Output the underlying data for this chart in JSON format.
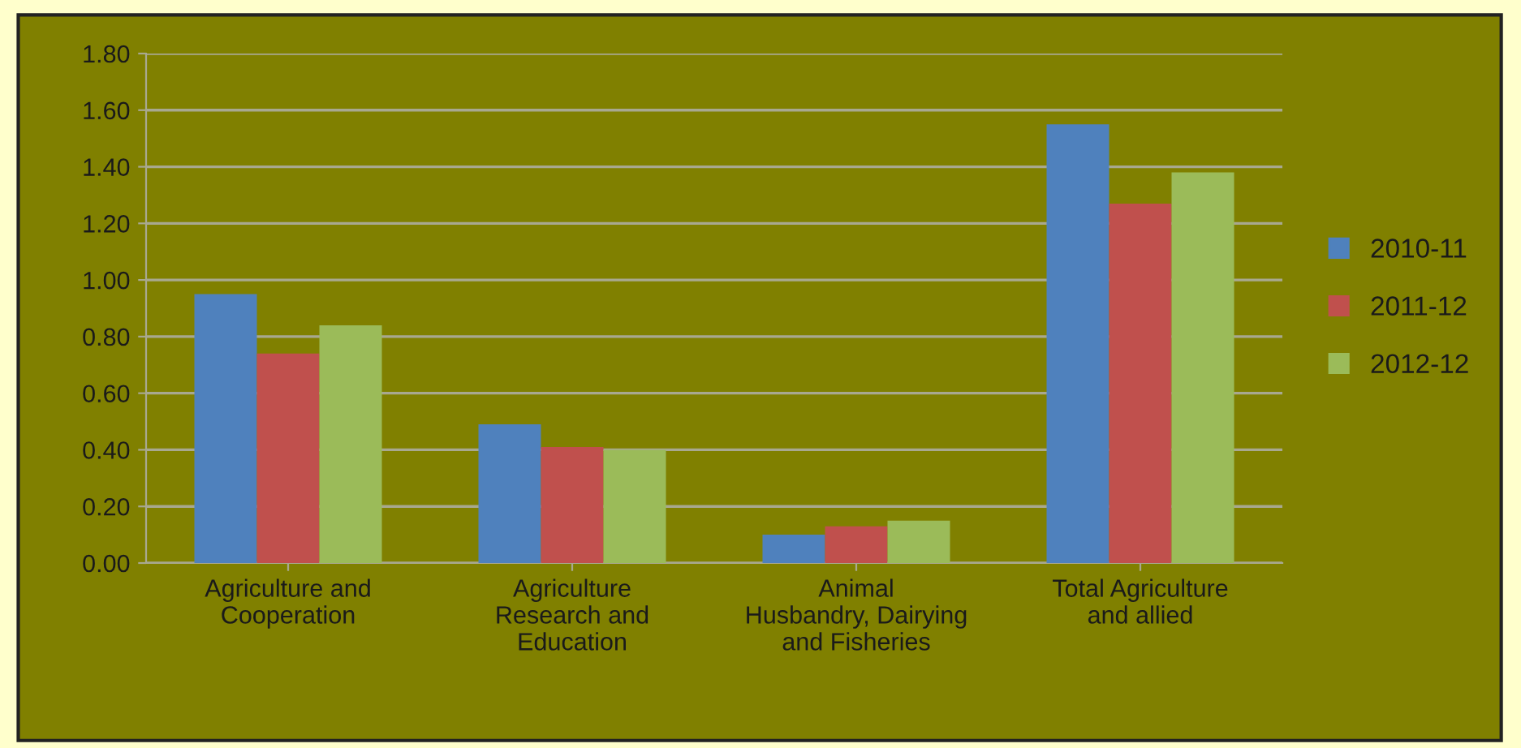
{
  "chart_data": {
    "type": "bar",
    "categories": [
      "Agriculture and\nCooperation",
      "Agriculture\nResearch and\nEducation",
      "Animal\nHusbandry, Dairying\nand Fisheries",
      "Total Agriculture\nand allied"
    ],
    "series": [
      {
        "name": "2010-11",
        "color": "#4f81bd",
        "values": [
          0.95,
          0.49,
          0.1,
          1.55
        ]
      },
      {
        "name": "2011-12",
        "color": "#c0504d",
        "values": [
          0.74,
          0.41,
          0.13,
          1.27
        ]
      },
      {
        "name": "2012-12",
        "color": "#9bbb59",
        "values": [
          0.84,
          0.4,
          0.15,
          1.38
        ]
      }
    ],
    "ylim": [
      0,
      1.8
    ],
    "yticks": [
      {
        "value": 0,
        "label": "0.00"
      },
      {
        "value": 0.2,
        "label": "0.20"
      },
      {
        "value": 0.4,
        "label": "0.40"
      },
      {
        "value": 0.6,
        "label": "0.60"
      },
      {
        "value": 0.8,
        "label": "0.80"
      },
      {
        "value": 1.0,
        "label": "1.00"
      },
      {
        "value": 1.2,
        "label": "1.20"
      },
      {
        "value": 1.4,
        "label": "1.40"
      },
      {
        "value": 1.6,
        "label": "1.60"
      },
      {
        "value": 1.8,
        "label": "1.80"
      }
    ],
    "grid": "y",
    "legend": "right"
  }
}
